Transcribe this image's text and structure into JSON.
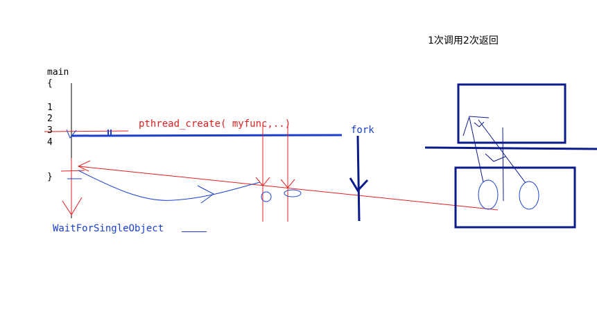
{
  "note": {
    "header": "1次调用2次返回"
  },
  "code": {
    "func_name": "main",
    "open_brace": "{",
    "line_numbers": [
      "1",
      "2",
      "3",
      "4"
    ],
    "close_brace": "}"
  },
  "labels": {
    "pthread_create": "pthread_create( myfunc,..)",
    "fork": "fork",
    "wait": "WaitForSingleObject"
  },
  "colors": {
    "red": "#e02020",
    "blue": "#1a3fd0",
    "navy": "#0a1a8a",
    "black": "#000000"
  }
}
